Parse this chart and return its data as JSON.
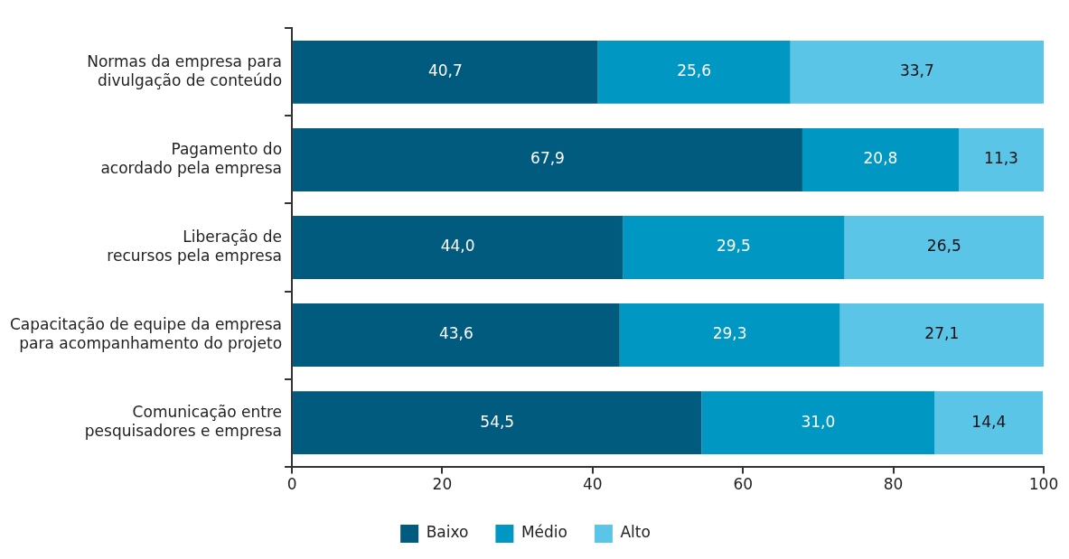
{
  "chart_data": {
    "type": "bar",
    "orientation": "horizontal",
    "stacked": true,
    "categories": [
      "Normas da empresa para divulgação de conteúdo",
      "Pagamento do acordado pela empresa",
      "Liberação de recursos pela empresa",
      "Capacitação de equipe da empresa para acompanhamento do projeto",
      "Comunicação entre pesquisadores e empresa"
    ],
    "series": [
      {
        "name": "Baixo",
        "color": "#005b7f",
        "values": [
          40.7,
          67.9,
          44.0,
          43.6,
          54.5
        ],
        "value_labels": [
          "40,7",
          "67,9",
          "44,0",
          "43,6",
          "54,5"
        ]
      },
      {
        "name": "Médio",
        "color": "#0098c2",
        "values": [
          25.6,
          20.8,
          29.5,
          29.3,
          31.0
        ],
        "value_labels": [
          "25,6",
          "20,8",
          "29,5",
          "29,3",
          "31,0"
        ]
      },
      {
        "name": "Alto",
        "color": "#5bc5e8",
        "values": [
          33.7,
          11.3,
          26.5,
          27.1,
          14.4
        ],
        "value_labels": [
          "33,7",
          "11,3",
          "26,5",
          "27,1",
          "14,4"
        ]
      }
    ],
    "xlim": [
      0,
      100
    ],
    "xticks": [
      0,
      20,
      40,
      60,
      80,
      100
    ],
    "grid": false,
    "legend": "bottom"
  }
}
